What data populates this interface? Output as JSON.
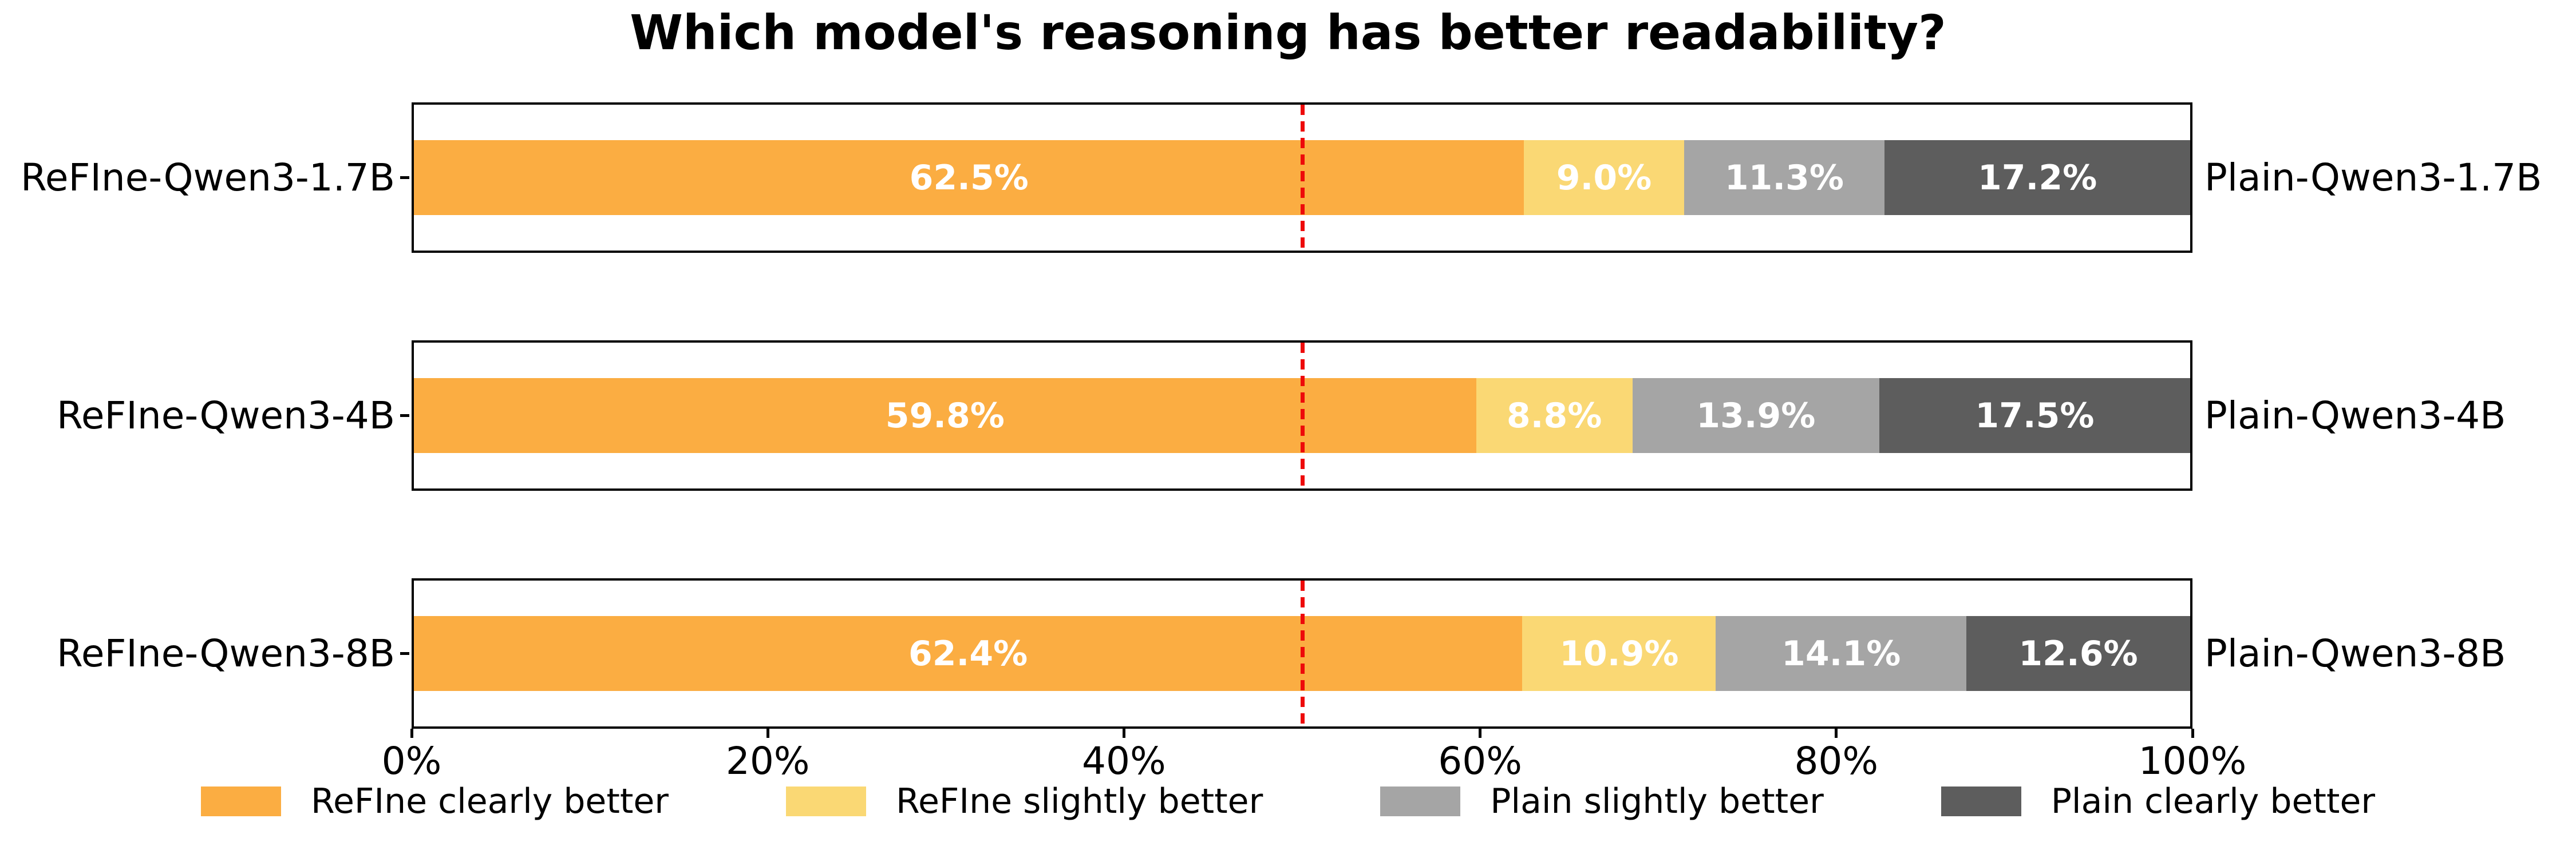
{
  "chart_data": {
    "type": "bar",
    "variant": "horizontal-stacked",
    "title": "Which model's reasoning has better readability?",
    "unit": "%",
    "xlim": [
      0,
      100
    ],
    "x_tick_labels": [
      "0%",
      "20%",
      "40%",
      "60%",
      "80%",
      "100%"
    ],
    "reference_line": {
      "value": 50,
      "color": "#EE0A0A",
      "style": "dashed"
    },
    "legend_position": "bottom",
    "grid": false,
    "series": [
      {
        "name": "ReFIne clearly better",
        "color": "#FBAD42",
        "values": [
          62.5,
          59.8,
          62.4
        ]
      },
      {
        "name": "ReFIne slightly better",
        "color": "#FAD874",
        "values": [
          9.0,
          8.8,
          10.9
        ]
      },
      {
        "name": "Plain slightly better",
        "color": "#A5A5A5",
        "values": [
          11.3,
          13.9,
          14.1
        ]
      },
      {
        "name": "Plain clearly better",
        "color": "#5D5D5D",
        "values": [
          17.2,
          17.5,
          12.6
        ]
      }
    ],
    "rows": [
      {
        "left_label": "ReFIne-Qwen3-1.7B",
        "right_label": "Plain-Qwen3-1.7B",
        "values": [
          62.5,
          9.0,
          11.3,
          17.2
        ],
        "value_labels": [
          "62.5%",
          "9.0%",
          "11.3%",
          "17.2%"
        ]
      },
      {
        "left_label": "ReFIne-Qwen3-4B",
        "right_label": "Plain-Qwen3-4B",
        "values": [
          59.8,
          8.8,
          13.9,
          17.5
        ],
        "value_labels": [
          "59.8%",
          "8.8%",
          "13.9%",
          "17.5%"
        ]
      },
      {
        "left_label": "ReFIne-Qwen3-8B",
        "right_label": "Plain-Qwen3-8B",
        "values": [
          62.4,
          10.9,
          14.1,
          12.6
        ],
        "value_labels": [
          "62.4%",
          "10.9%",
          "14.1%",
          "12.6%"
        ]
      }
    ],
    "colors": {
      "bar_label_text": "#FFFFFF",
      "axis": "#000000",
      "background": "#FFFFFF"
    }
  }
}
